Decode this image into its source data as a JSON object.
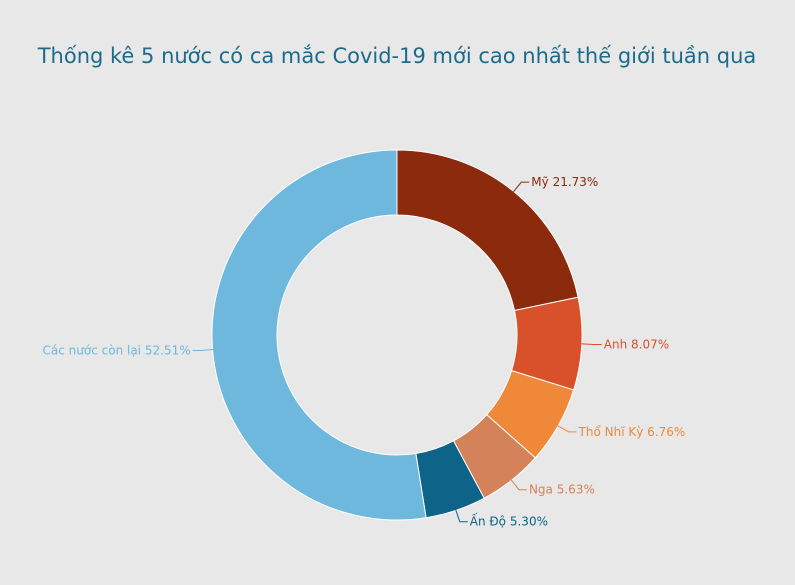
{
  "chart_data": {
    "type": "pie",
    "title": "Thống kê 5 nước có ca mắc Covid-19 mới cao nhất thế giới tuần qua",
    "categories": [
      "Mỹ",
      "Anh",
      "Thổ Nhĩ Kỳ",
      "Nga",
      "Ấn Độ",
      "Các nước còn lại"
    ],
    "values": [
      21.73,
      8.07,
      6.76,
      5.63,
      5.3,
      52.51
    ],
    "value_labels": [
      "21.73%",
      "8.07%",
      "6.76%",
      "5.63%",
      "5.30%",
      "52.51%"
    ],
    "colors": [
      "#8b2a0c",
      "#d9512a",
      "#f0883a",
      "#d4825a",
      "#0e6389",
      "#6db8dc"
    ]
  }
}
